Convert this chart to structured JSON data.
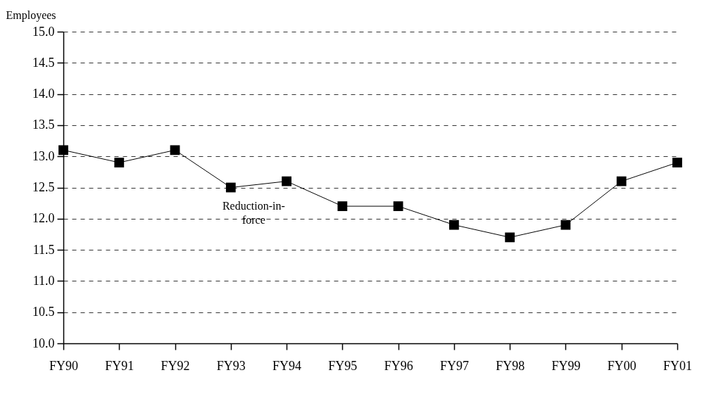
{
  "chart_data": {
    "type": "line",
    "ylabel": "Employees",
    "categories": [
      "FY90",
      "FY91",
      "FY92",
      "FY93",
      "FY94",
      "FY95",
      "FY96",
      "FY97",
      "FY98",
      "FY99",
      "FY00",
      "FY01"
    ],
    "series": [
      {
        "color": "#000000",
        "values": [
          13.1,
          12.9,
          13.1,
          12.5,
          12.6,
          12.2,
          12.2,
          11.9,
          11.7,
          11.9,
          12.6,
          12.9
        ]
      }
    ],
    "ylim": [
      10,
      15
    ],
    "yticks": [
      {
        "value": 10,
        "label": "10.0"
      },
      {
        "value": 10.5,
        "label": "10.5"
      },
      {
        "value": 11,
        "label": "11.0"
      },
      {
        "value": 11.5,
        "label": "11.5"
      },
      {
        "value": 12,
        "label": "12.0"
      },
      {
        "value": 12.5,
        "label": "12.5"
      },
      {
        "value": 13,
        "label": "13.0"
      },
      {
        "value": 13.5,
        "label": "13.5"
      },
      {
        "value": 14,
        "label": "14.0"
      },
      {
        "value": 14.5,
        "label": "14.5"
      },
      {
        "value": 15,
        "label": "15.0"
      }
    ],
    "grid": "y",
    "marker": "square",
    "line_style": "solid",
    "legend": false,
    "annotations": [
      "Reduction-in-force"
    ]
  }
}
